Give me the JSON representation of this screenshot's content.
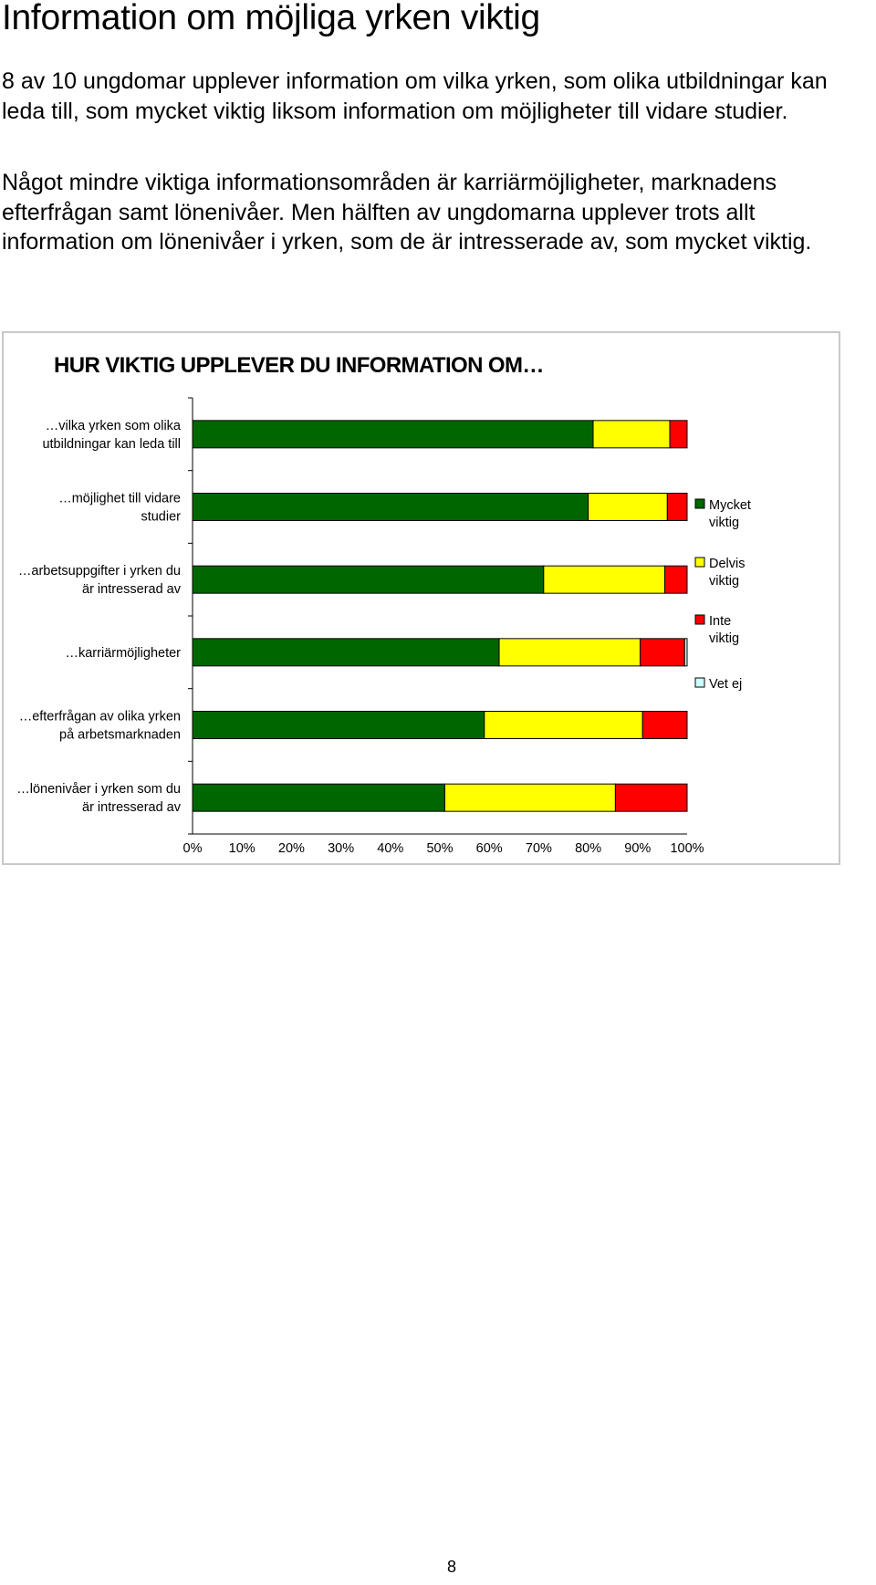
{
  "page": {
    "title": "Information om möjliga yrken viktig",
    "paragraphs": [
      "8 av 10 ungdomar upplever information om vilka yrken, som olika utbildningar kan leda till, som mycket viktig liksom information om möjligheter till vidare studier.",
      "Något mindre viktiga informationsområden är karriärmöjligheter, marknadens efterfrågan samt lönenivåer. Men hälften av ungdomarna upplever trots allt information om lönenivåer i yrken, som de är intresserade av, som mycket viktig."
    ],
    "page_number": "8"
  },
  "chart_data": {
    "type": "bar",
    "orientation": "horizontal",
    "stacked": true,
    "title": "HUR VIKTIG UPPLEVER DU INFORMATION OM…",
    "categories": [
      [
        "…vilka yrken som olika",
        "utbildningar kan leda till"
      ],
      [
        "…möjlighet till vidare",
        "studier"
      ],
      [
        "…arbetsuppgifter i yrken du",
        "är intresserad av"
      ],
      [
        "…karriärmöjligheter"
      ],
      [
        "…efterfrågan av olika yrken",
        "på arbetsmarknaden"
      ],
      [
        "…lönenivåer i yrken som du",
        "är intresserad av"
      ]
    ],
    "series": [
      {
        "name": "Mycket viktig",
        "color": "#006600",
        "values": [
          81,
          80,
          71,
          62,
          59,
          51
        ]
      },
      {
        "name": "Delvis viktig",
        "color": "#ffff00",
        "values": [
          15.5,
          16,
          24.5,
          28.5,
          32,
          34.5
        ]
      },
      {
        "name": "Inte viktig",
        "color": "#ff0000",
        "values": [
          3.5,
          4,
          4.5,
          9,
          9,
          14.5
        ]
      },
      {
        "name": "Vet ej",
        "color": "#ccffff",
        "values": [
          0,
          0,
          0,
          0.5,
          0,
          0
        ]
      }
    ],
    "legend_labels": [
      [
        "Mycket",
        "viktig"
      ],
      [
        "Delvis",
        "viktig"
      ],
      [
        "Inte",
        "viktig"
      ],
      [
        "Vet ej"
      ]
    ],
    "x_ticks": [
      "0%",
      "10%",
      "20%",
      "30%",
      "40%",
      "50%",
      "60%",
      "70%",
      "80%",
      "90%",
      "100%"
    ],
    "xlim": [
      0,
      100
    ],
    "grid": false,
    "legend_position": "right"
  }
}
